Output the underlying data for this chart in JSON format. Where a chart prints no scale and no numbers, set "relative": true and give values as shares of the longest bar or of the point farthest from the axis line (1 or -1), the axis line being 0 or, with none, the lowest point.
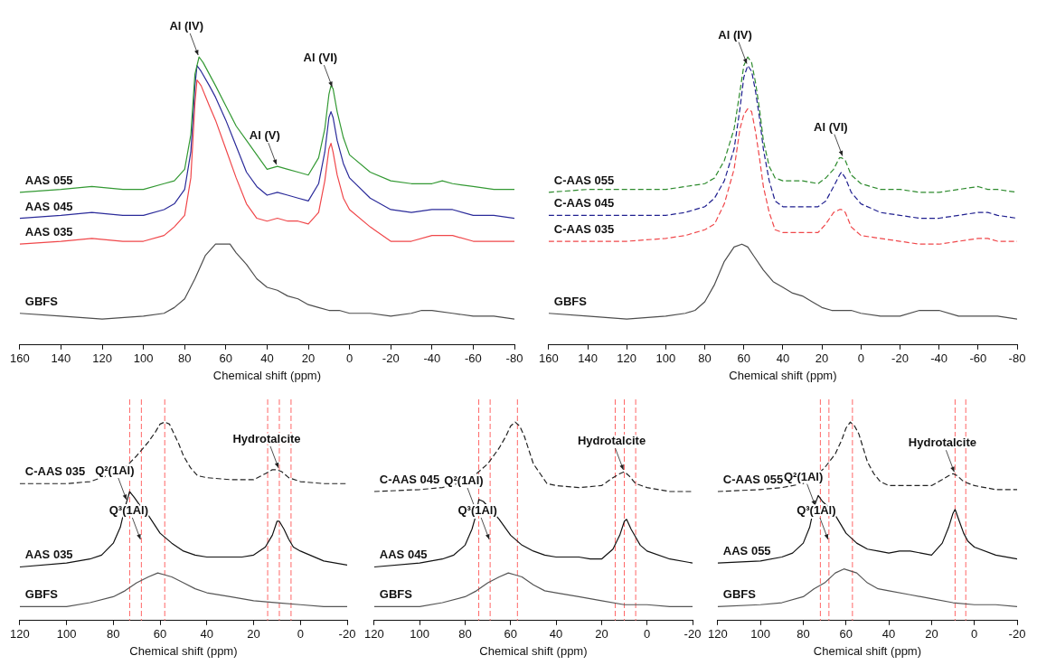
{
  "chart_data": [
    {
      "type": "line",
      "relative": true,
      "xlabel": "Chemical shift (ppm)",
      "xlim": [
        160,
        -80
      ],
      "xticks": [
        160,
        140,
        120,
        100,
        80,
        60,
        40,
        20,
        0,
        -20,
        -40,
        -60,
        -80
      ],
      "annotations": [
        {
          "text": "Al (IV)",
          "x": 73,
          "y": 1
        },
        {
          "text": "Al (V)",
          "x": 35,
          "y": 0.62
        },
        {
          "text": "Al (VI)",
          "x": 8,
          "y": 0.89
        }
      ],
      "series": [
        {
          "name": "AAS 055",
          "color": "#339933",
          "x": [
            160,
            140,
            125,
            110,
            100,
            90,
            85,
            80,
            77,
            75,
            73,
            71,
            68,
            65,
            60,
            55,
            50,
            45,
            40,
            35,
            30,
            25,
            20,
            15,
            12,
            10,
            9,
            8,
            6,
            3,
            0,
            -10,
            -20,
            -30,
            -40,
            -45,
            -50,
            -60,
            -70,
            -80
          ],
          "values": [
            0.53,
            0.54,
            0.55,
            0.54,
            0.54,
            0.56,
            0.57,
            0.61,
            0.73,
            0.94,
            1,
            0.98,
            0.94,
            0.9,
            0.83,
            0.76,
            0.71,
            0.66,
            0.61,
            0.62,
            0.61,
            0.6,
            0.59,
            0.65,
            0.75,
            0.87,
            0.9,
            0.89,
            0.81,
            0.72,
            0.66,
            0.6,
            0.57,
            0.56,
            0.56,
            0.57,
            0.56,
            0.55,
            0.54,
            0.54
          ]
        },
        {
          "name": "AAS 045",
          "color": "#2b2b9a",
          "x": [
            160,
            140,
            125,
            110,
            100,
            90,
            85,
            80,
            77,
            75,
            74,
            72,
            68,
            65,
            60,
            55,
            50,
            45,
            40,
            35,
            30,
            25,
            20,
            15,
            12,
            10,
            9,
            8,
            6,
            3,
            0,
            -10,
            -20,
            -30,
            -40,
            -45,
            -50,
            -60,
            -70,
            -80
          ],
          "values": [
            0.44,
            0.45,
            0.46,
            0.45,
            0.45,
            0.47,
            0.49,
            0.54,
            0.67,
            0.9,
            0.97,
            0.95,
            0.9,
            0.86,
            0.78,
            0.69,
            0.6,
            0.55,
            0.52,
            0.53,
            0.52,
            0.51,
            0.5,
            0.56,
            0.67,
            0.79,
            0.81,
            0.79,
            0.71,
            0.63,
            0.58,
            0.51,
            0.47,
            0.46,
            0.47,
            0.47,
            0.47,
            0.45,
            0.45,
            0.44
          ]
        },
        {
          "name": "AAS 035",
          "color": "#f0474a",
          "x": [
            160,
            140,
            125,
            110,
            100,
            90,
            85,
            80,
            77,
            75,
            74,
            72,
            68,
            65,
            60,
            55,
            50,
            45,
            40,
            35,
            30,
            25,
            20,
            15,
            12,
            10,
            9,
            8,
            6,
            3,
            0,
            -10,
            -20,
            -30,
            -40,
            -45,
            -50,
            -60,
            -70,
            -80
          ],
          "values": [
            0.35,
            0.36,
            0.37,
            0.36,
            0.36,
            0.38,
            0.41,
            0.45,
            0.58,
            0.84,
            0.92,
            0.9,
            0.83,
            0.78,
            0.68,
            0.58,
            0.49,
            0.44,
            0.43,
            0.44,
            0.43,
            0.43,
            0.42,
            0.46,
            0.57,
            0.68,
            0.7,
            0.67,
            0.59,
            0.51,
            0.47,
            0.41,
            0.36,
            0.36,
            0.38,
            0.38,
            0.38,
            0.36,
            0.36,
            0.36
          ]
        },
        {
          "name": "GBFS",
          "color": "#4d4d4d",
          "x": [
            160,
            140,
            120,
            100,
            90,
            85,
            80,
            75,
            70,
            65,
            61,
            58,
            55,
            50,
            45,
            40,
            35,
            30,
            25,
            20,
            15,
            10,
            5,
            0,
            -10,
            -20,
            -30,
            -35,
            -40,
            -50,
            -60,
            -70,
            -80
          ],
          "values": [
            0.11,
            0.1,
            0.09,
            0.1,
            0.11,
            0.13,
            0.16,
            0.23,
            0.31,
            0.35,
            0.35,
            0.35,
            0.32,
            0.28,
            0.23,
            0.2,
            0.19,
            0.17,
            0.16,
            0.14,
            0.13,
            0.12,
            0.12,
            0.11,
            0.11,
            0.1,
            0.11,
            0.12,
            0.12,
            0.11,
            0.1,
            0.1,
            0.09
          ]
        }
      ]
    },
    {
      "type": "line",
      "relative": true,
      "line_style": "dashed",
      "xlabel": "Chemical shift (ppm)",
      "xlim": [
        160,
        -80
      ],
      "xticks": [
        160,
        140,
        120,
        100,
        80,
        60,
        40,
        20,
        0,
        -20,
        -40,
        -60,
        -80
      ],
      "annotations": [
        {
          "text": "Al (IV)",
          "x": 58,
          "y": 0.97
        },
        {
          "text": "Al (VI)",
          "x": 9,
          "y": 0.65
        }
      ],
      "series": [
        {
          "name": "C-AAS 055",
          "color": "#2e8b2e",
          "x": [
            160,
            140,
            120,
            100,
            90,
            80,
            75,
            70,
            65,
            62,
            60,
            58,
            56,
            54,
            52,
            50,
            47,
            44,
            40,
            30,
            22,
            18,
            14,
            11,
            10,
            8,
            5,
            0,
            -10,
            -20,
            -30,
            -40,
            -50,
            -60,
            -65,
            -70,
            -80
          ],
          "values": [
            0.53,
            0.54,
            0.54,
            0.54,
            0.55,
            0.56,
            0.58,
            0.64,
            0.75,
            0.88,
            0.97,
            1,
            0.98,
            0.91,
            0.82,
            0.71,
            0.62,
            0.58,
            0.57,
            0.57,
            0.56,
            0.58,
            0.61,
            0.65,
            0.65,
            0.64,
            0.59,
            0.56,
            0.54,
            0.54,
            0.53,
            0.53,
            0.54,
            0.55,
            0.54,
            0.54,
            0.53
          ]
        },
        {
          "name": "C-AAS 045",
          "color": "#1f1f8f",
          "x": [
            160,
            140,
            120,
            100,
            90,
            80,
            75,
            70,
            65,
            62,
            60,
            58,
            56,
            54,
            52,
            50,
            47,
            44,
            40,
            30,
            22,
            18,
            14,
            11,
            10,
            8,
            5,
            0,
            -10,
            -20,
            -30,
            -40,
            -50,
            -60,
            -65,
            -70,
            -80
          ],
          "values": [
            0.45,
            0.45,
            0.45,
            0.45,
            0.46,
            0.48,
            0.51,
            0.57,
            0.68,
            0.82,
            0.93,
            0.97,
            0.95,
            0.88,
            0.79,
            0.68,
            0.57,
            0.5,
            0.48,
            0.48,
            0.48,
            0.5,
            0.55,
            0.59,
            0.6,
            0.58,
            0.53,
            0.49,
            0.46,
            0.45,
            0.44,
            0.44,
            0.45,
            0.46,
            0.46,
            0.45,
            0.44
          ]
        },
        {
          "name": "C-AAS 035",
          "color": "#f0474a",
          "x": [
            160,
            140,
            120,
            100,
            90,
            80,
            75,
            70,
            65,
            62,
            60,
            58,
            56,
            54,
            52,
            50,
            47,
            44,
            40,
            30,
            22,
            18,
            14,
            11,
            10,
            8,
            5,
            0,
            -10,
            -20,
            -30,
            -40,
            -50,
            -60,
            -65,
            -70,
            -80
          ],
          "values": [
            0.36,
            0.36,
            0.36,
            0.37,
            0.38,
            0.4,
            0.42,
            0.49,
            0.61,
            0.75,
            0.8,
            0.82,
            0.81,
            0.74,
            0.65,
            0.55,
            0.46,
            0.4,
            0.39,
            0.39,
            0.39,
            0.42,
            0.46,
            0.47,
            0.47,
            0.46,
            0.41,
            0.38,
            0.37,
            0.36,
            0.35,
            0.35,
            0.36,
            0.37,
            0.37,
            0.36,
            0.36
          ]
        },
        {
          "name": "GBFS",
          "color": "#4d4d4d",
          "line_style": "solid",
          "x": [
            160,
            140,
            120,
            100,
            90,
            85,
            80,
            75,
            70,
            65,
            61,
            58,
            55,
            50,
            45,
            40,
            35,
            30,
            25,
            20,
            15,
            10,
            5,
            0,
            -10,
            -20,
            -30,
            -35,
            -40,
            -50,
            -60,
            -70,
            -80
          ],
          "values": [
            0.11,
            0.1,
            0.09,
            0.1,
            0.11,
            0.12,
            0.15,
            0.21,
            0.29,
            0.34,
            0.35,
            0.34,
            0.31,
            0.26,
            0.22,
            0.2,
            0.18,
            0.17,
            0.15,
            0.13,
            0.12,
            0.12,
            0.12,
            0.11,
            0.1,
            0.1,
            0.12,
            0.12,
            0.12,
            0.1,
            0.1,
            0.1,
            0.09
          ]
        }
      ]
    },
    {
      "type": "line",
      "relative": true,
      "xlabel": "Chemical shift (ppm)",
      "xlim": [
        120,
        -20
      ],
      "xticks": [
        120,
        100,
        80,
        60,
        40,
        20,
        0,
        -20
      ],
      "ref_lines": [
        {
          "axis": "x",
          "value": 73,
          "color": "#ff6666",
          "line_style": "dashed"
        },
        {
          "axis": "x",
          "value": 68,
          "color": "#ff6666",
          "line_style": "dashed"
        },
        {
          "axis": "x",
          "value": 58,
          "color": "#ff6666",
          "line_style": "dashed"
        },
        {
          "axis": "x",
          "value": 14,
          "color": "#ff6666",
          "line_style": "dashed"
        },
        {
          "axis": "x",
          "value": 9,
          "color": "#ff6666",
          "line_style": "dashed"
        },
        {
          "axis": "x",
          "value": 4,
          "color": "#ff6666",
          "line_style": "dashed"
        }
      ],
      "annotations": [
        {
          "text": "Hydrotalcite",
          "x": 9,
          "y": 0.76
        },
        {
          "text": "Q²(1Al)",
          "x": 74,
          "y": 0.6
        },
        {
          "text": "Q³(1Al)",
          "x": 68,
          "y": 0.4
        }
      ],
      "series": [
        {
          "name": "C-AAS 035",
          "color": "#222222",
          "line_style": "dashed",
          "x": [
            120,
            100,
            90,
            80,
            75,
            70,
            65,
            62,
            60,
            58,
            56,
            54,
            52,
            50,
            47,
            44,
            40,
            30,
            20,
            15,
            12,
            10,
            8,
            5,
            0,
            -10,
            -20
          ],
          "values": [
            0.69,
            0.69,
            0.7,
            0.74,
            0.77,
            0.83,
            0.9,
            0.95,
            0.99,
            1,
            0.99,
            0.94,
            0.89,
            0.83,
            0.77,
            0.73,
            0.72,
            0.71,
            0.71,
            0.74,
            0.76,
            0.76,
            0.75,
            0.72,
            0.7,
            0.69,
            0.69
          ]
        },
        {
          "name": "AAS 035",
          "color": "#111111",
          "x": [
            120,
            100,
            90,
            85,
            80,
            77,
            75,
            73,
            71,
            68,
            65,
            60,
            55,
            50,
            45,
            40,
            35,
            30,
            25,
            20,
            15,
            12,
            10,
            9,
            7,
            5,
            3,
            0,
            -10,
            -20
          ],
          "values": [
            0.27,
            0.29,
            0.31,
            0.33,
            0.39,
            0.47,
            0.57,
            0.65,
            0.62,
            0.57,
            0.53,
            0.44,
            0.39,
            0.35,
            0.33,
            0.32,
            0.32,
            0.32,
            0.32,
            0.33,
            0.37,
            0.43,
            0.5,
            0.5,
            0.46,
            0.41,
            0.37,
            0.35,
            0.3,
            0.28
          ]
        },
        {
          "name": "GBFS",
          "color": "#555555",
          "x": [
            120,
            100,
            90,
            80,
            75,
            70,
            65,
            61,
            58,
            55,
            50,
            45,
            40,
            30,
            20,
            10,
            0,
            -10,
            -20
          ],
          "values": [
            0.07,
            0.07,
            0.09,
            0.12,
            0.15,
            0.19,
            0.22,
            0.24,
            0.23,
            0.22,
            0.19,
            0.16,
            0.14,
            0.12,
            0.1,
            0.09,
            0.08,
            0.07,
            0.07
          ]
        }
      ]
    },
    {
      "type": "line",
      "relative": true,
      "xlabel": "Chemical shift (ppm)",
      "xlim": [
        120,
        -20
      ],
      "xticks": [
        120,
        100,
        80,
        60,
        40,
        20,
        0,
        -20
      ],
      "ref_lines": [
        {
          "axis": "x",
          "value": 74,
          "color": "#ff6666",
          "line_style": "dashed"
        },
        {
          "axis": "x",
          "value": 69,
          "color": "#ff6666",
          "line_style": "dashed"
        },
        {
          "axis": "x",
          "value": 57,
          "color": "#ff6666",
          "line_style": "dashed"
        },
        {
          "axis": "x",
          "value": 14,
          "color": "#ff6666",
          "line_style": "dashed"
        },
        {
          "axis": "x",
          "value": 10,
          "color": "#ff6666",
          "line_style": "dashed"
        },
        {
          "axis": "x",
          "value": 5,
          "color": "#ff6666",
          "line_style": "dashed"
        }
      ],
      "annotations": [
        {
          "text": "Hydrotalcite",
          "x": 10,
          "y": 0.75
        },
        {
          "text": "Q²(1Al)",
          "x": 75,
          "y": 0.55
        },
        {
          "text": "Q³(1Al)",
          "x": 69,
          "y": 0.4
        }
      ],
      "series": [
        {
          "name": "C-AAS 045",
          "color": "#222222",
          "line_style": "dashed",
          "x": [
            120,
            100,
            90,
            80,
            75,
            70,
            65,
            62,
            60,
            58,
            56,
            54,
            52,
            50,
            47,
            44,
            40,
            30,
            20,
            15,
            12,
            10,
            8,
            5,
            0,
            -10,
            -20
          ],
          "values": [
            0.65,
            0.66,
            0.67,
            0.7,
            0.74,
            0.79,
            0.87,
            0.93,
            0.98,
            1,
            0.98,
            0.93,
            0.86,
            0.79,
            0.74,
            0.69,
            0.68,
            0.67,
            0.68,
            0.72,
            0.74,
            0.75,
            0.73,
            0.69,
            0.67,
            0.65,
            0.65
          ]
        },
        {
          "name": "AAS 045",
          "color": "#111111",
          "x": [
            120,
            100,
            90,
            85,
            80,
            77,
            75,
            74,
            72,
            68,
            65,
            60,
            55,
            50,
            45,
            40,
            35,
            30,
            25,
            20,
            15,
            12,
            10,
            9,
            7,
            5,
            3,
            0,
            -10,
            -20
          ],
          "values": [
            0.27,
            0.29,
            0.31,
            0.33,
            0.38,
            0.46,
            0.54,
            0.61,
            0.6,
            0.55,
            0.51,
            0.43,
            0.38,
            0.35,
            0.33,
            0.32,
            0.32,
            0.32,
            0.31,
            0.31,
            0.36,
            0.43,
            0.5,
            0.51,
            0.46,
            0.42,
            0.38,
            0.35,
            0.31,
            0.29
          ]
        },
        {
          "name": "GBFS",
          "color": "#555555",
          "x": [
            120,
            100,
            90,
            80,
            75,
            70,
            65,
            61,
            58,
            55,
            50,
            45,
            40,
            30,
            20,
            10,
            0,
            -10,
            -20
          ],
          "values": [
            0.07,
            0.07,
            0.09,
            0.12,
            0.15,
            0.19,
            0.22,
            0.24,
            0.23,
            0.22,
            0.18,
            0.15,
            0.14,
            0.12,
            0.1,
            0.08,
            0.08,
            0.07,
            0.07
          ]
        }
      ]
    },
    {
      "type": "line",
      "relative": true,
      "xlabel": "Chemical shift (ppm)",
      "xlim": [
        120,
        -20
      ],
      "xticks": [
        120,
        100,
        80,
        60,
        40,
        20,
        0,
        -20
      ],
      "ref_lines": [
        {
          "axis": "x",
          "value": 72,
          "color": "#ff6666",
          "line_style": "dashed"
        },
        {
          "axis": "x",
          "value": 68,
          "color": "#ff6666",
          "line_style": "dashed"
        },
        {
          "axis": "x",
          "value": 57,
          "color": "#ff6666",
          "line_style": "dashed"
        },
        {
          "axis": "x",
          "value": 9,
          "color": "#ff6666",
          "line_style": "dashed"
        },
        {
          "axis": "x",
          "value": 4,
          "color": "#ff6666",
          "line_style": "dashed"
        }
      ],
      "annotations": [
        {
          "text": "Hydrotalcite",
          "x": 9,
          "y": 0.74
        },
        {
          "text": "Q²(1Al)",
          "x": 74,
          "y": 0.57
        },
        {
          "text": "Q³(1Al)",
          "x": 68,
          "y": 0.4
        }
      ],
      "series": [
        {
          "name": "C-AAS 055",
          "color": "#222222",
          "line_style": "dashed",
          "x": [
            120,
            100,
            90,
            80,
            75,
            70,
            65,
            62,
            60,
            58,
            56,
            54,
            52,
            50,
            47,
            44,
            40,
            30,
            20,
            15,
            12,
            10,
            8,
            5,
            0,
            -10,
            -20
          ],
          "values": [
            0.65,
            0.66,
            0.67,
            0.69,
            0.72,
            0.77,
            0.84,
            0.91,
            0.97,
            1,
            0.98,
            0.94,
            0.87,
            0.8,
            0.74,
            0.7,
            0.68,
            0.68,
            0.68,
            0.71,
            0.73,
            0.74,
            0.73,
            0.7,
            0.68,
            0.66,
            0.66
          ]
        },
        {
          "name": "AAS 055",
          "color": "#111111",
          "x": [
            120,
            100,
            90,
            85,
            80,
            77,
            75,
            73,
            71,
            68,
            65,
            60,
            55,
            50,
            45,
            40,
            35,
            30,
            25,
            20,
            15,
            12,
            10,
            9,
            7,
            5,
            3,
            0,
            -10,
            -20
          ],
          "values": [
            0.29,
            0.3,
            0.32,
            0.34,
            0.39,
            0.47,
            0.57,
            0.63,
            0.6,
            0.57,
            0.53,
            0.44,
            0.39,
            0.36,
            0.35,
            0.34,
            0.35,
            0.35,
            0.34,
            0.33,
            0.39,
            0.47,
            0.54,
            0.56,
            0.5,
            0.44,
            0.4,
            0.37,
            0.33,
            0.31
          ]
        },
        {
          "name": "GBFS",
          "color": "#555555",
          "x": [
            120,
            100,
            90,
            80,
            75,
            70,
            65,
            61,
            58,
            55,
            50,
            45,
            40,
            30,
            20,
            10,
            0,
            -10,
            -20
          ],
          "values": [
            0.07,
            0.08,
            0.09,
            0.12,
            0.16,
            0.19,
            0.24,
            0.26,
            0.25,
            0.24,
            0.19,
            0.16,
            0.15,
            0.13,
            0.11,
            0.09,
            0.08,
            0.08,
            0.07
          ]
        }
      ]
    }
  ]
}
